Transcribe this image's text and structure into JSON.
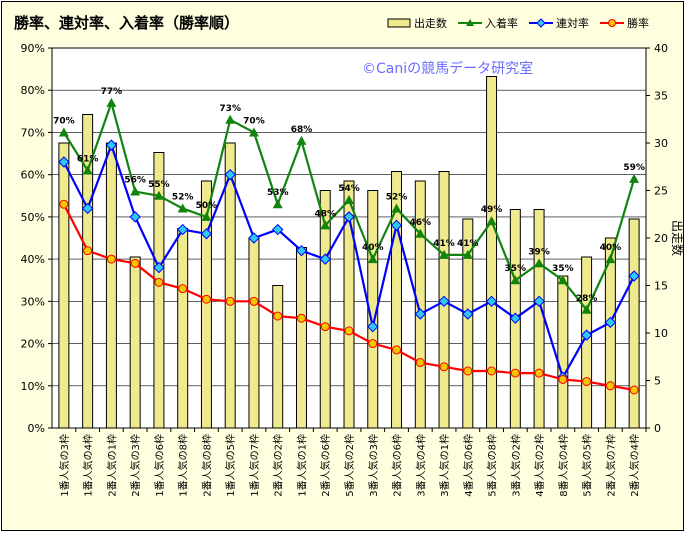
{
  "chart_data": {
    "type": "bar+line",
    "title": "勝率、連対率、入着率（勝率順）",
    "watermark": "©Caniの競馬データ研究室",
    "y_left": {
      "min": 0,
      "max": 90,
      "step": 10,
      "ticks": [
        "0%",
        "10%",
        "20%",
        "30%",
        "40%",
        "50%",
        "60%",
        "70%",
        "80%",
        "90%"
      ]
    },
    "y_right": {
      "min": 0,
      "max": 40,
      "step": 5,
      "label": "出走数",
      "ticks": [
        "0",
        "5",
        "10",
        "15",
        "20",
        "25",
        "30",
        "35",
        "40"
      ]
    },
    "categories": [
      "1番人気の3枠",
      "1番人気の4枠",
      "2番人気の1枠",
      "2番人気の3枠",
      "1番人気の6枠",
      "1番人気の8枠",
      "2番人気の8枠",
      "1番人気の5枠",
      "1番人気の7枠",
      "2番人気の2枠",
      "1番人気の1枠",
      "2番人気の6枠",
      "5番人気の2枠",
      "3番人気の3枠",
      "2番人気の6枠",
      "3番人気の4枠",
      "3番人気の1枠",
      "4番人気の6枠",
      "5番人気の8枠",
      "3番人気の2枠",
      "4番人気の2枠",
      "8番人気の4枠",
      "5番人気の5枠",
      "2番人気の7枠",
      "2番人気の4枠"
    ],
    "series": [
      {
        "name": "出走数",
        "type": "bar",
        "axis": "right",
        "values": [
          30,
          33,
          30,
          18,
          29,
          21,
          26,
          30,
          20,
          15,
          19,
          25,
          26,
          25,
          27,
          26,
          27,
          22,
          37,
          23,
          23,
          16,
          18,
          20,
          22
        ]
      },
      {
        "name": "入着率",
        "type": "line",
        "axis": "left",
        "values": [
          70,
          61,
          77,
          56,
          55,
          52,
          50,
          73,
          70,
          53,
          68,
          48,
          54,
          40,
          52,
          46,
          41,
          41,
          49,
          35,
          39,
          35,
          28,
          40,
          59
        ],
        "labels": [
          "70%",
          "61%",
          "77%",
          "56%",
          "55%",
          "52%",
          "50%",
          "73%",
          "70%",
          "53%",
          "68%",
          "48%",
          "54%",
          "40%",
          "52%",
          "46%",
          "41%",
          "41%",
          "49%",
          "35%",
          "39%",
          "35%",
          "28%",
          "40%",
          "59%"
        ]
      },
      {
        "name": "連対率",
        "type": "line",
        "axis": "left",
        "values": [
          63,
          52,
          67,
          50,
          38,
          47,
          46,
          60,
          45,
          47,
          42,
          40,
          50,
          24,
          48,
          27,
          30,
          27,
          30,
          26,
          30,
          12,
          22,
          25,
          36
        ]
      },
      {
        "name": "勝率",
        "type": "line",
        "axis": "left",
        "values": [
          53,
          42,
          40,
          39,
          34.5,
          33,
          30.5,
          30,
          30,
          26.5,
          26,
          24,
          23,
          20,
          18.5,
          15.5,
          14.5,
          13.5,
          13.5,
          13,
          13,
          11.5,
          11,
          10,
          9
        ]
      }
    ],
    "colors": {
      "bar_fill": "#f0ea8e",
      "bar_stroke": "#000000",
      "nyuchaku": "#11840f",
      "rentai": "#0000ff",
      "rentai_marker": "#2ec8f0",
      "shoritsu": "#ff0000",
      "shoritsu_marker": "#f2c800",
      "plot_bg": "#ffffff",
      "chart_bg": "#ffffdf",
      "grid": "#000000",
      "watermark": "#6a6aff"
    },
    "legend_position": "top-right",
    "grid": "horizontal",
    "legend": {
      "bars": "出走数",
      "nyuchaku": "入着率",
      "rentai": "連対率",
      "shoritsu": "勝率"
    }
  }
}
